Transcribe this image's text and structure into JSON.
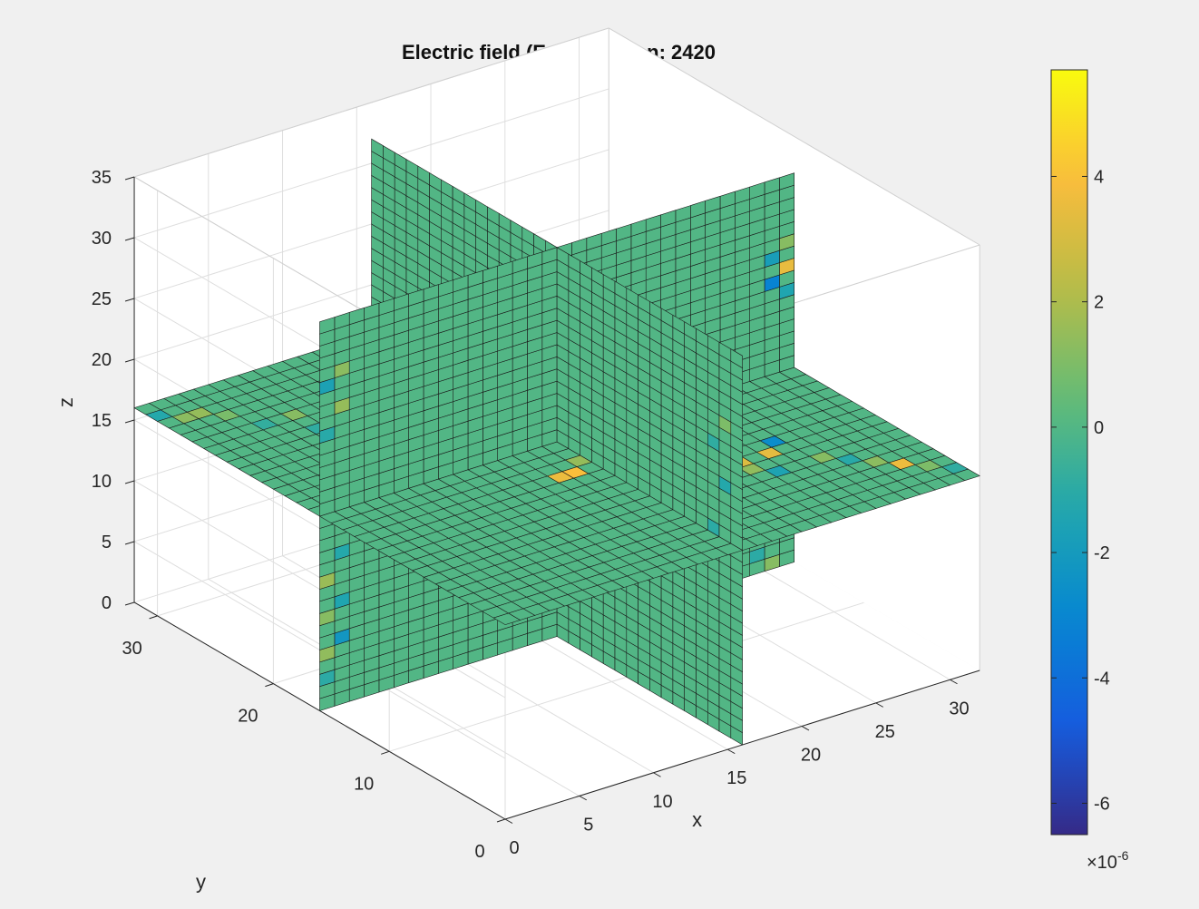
{
  "chart_data": {
    "type": "heatmap",
    "subtype": "3d-slice",
    "title": "Electric field (Ez) - Iteration: 2420",
    "xlabel": "x",
    "ylabel": "y",
    "zlabel": "z",
    "xlim": [
      0,
      32
    ],
    "ylim": [
      0,
      32
    ],
    "zlim": [
      0,
      35
    ],
    "x_ticks": [
      "0",
      "5",
      "10",
      "15",
      "20",
      "25",
      "30"
    ],
    "y_ticks": [
      "0",
      "10",
      "20",
      "30"
    ],
    "z_ticks": [
      "0",
      "5",
      "10",
      "15",
      "20",
      "25",
      "30",
      "35"
    ],
    "slices": {
      "x": 16,
      "y": 16,
      "z": 16
    },
    "grid_cells": 32,
    "colormap": "parula",
    "colorbar": {
      "ticks": [
        "-6",
        "-4",
        "-2",
        "0",
        "2",
        "4"
      ],
      "exponent_label": "×10",
      "exponent_power": "-6",
      "range": [
        -6.5,
        5.7
      ]
    },
    "background_value": 0,
    "nonzero_cells": [
      {
        "plane": "z",
        "i": 0,
        "j": 30,
        "v": -1.2
      },
      {
        "plane": "z",
        "i": 1,
        "j": 29,
        "v": 1.3
      },
      {
        "plane": "z",
        "i": 2,
        "j": 29,
        "v": 1.5
      },
      {
        "plane": "z",
        "i": 3,
        "j": 28,
        "v": 0.9
      },
      {
        "plane": "z",
        "i": 4,
        "j": 26,
        "v": -0.8
      },
      {
        "plane": "z",
        "i": 6,
        "j": 24,
        "v": -0.9
      },
      {
        "plane": "z",
        "i": 6,
        "j": 26,
        "v": 1.2
      },
      {
        "plane": "z",
        "i": 7,
        "j": 23,
        "v": -2.0
      },
      {
        "plane": "z",
        "i": 8,
        "j": 22,
        "v": -1.0
      },
      {
        "plane": "z",
        "i": 9,
        "j": 21,
        "v": 1.1
      },
      {
        "plane": "z",
        "i": 11,
        "j": 19,
        "v": -1.4
      },
      {
        "plane": "z",
        "i": 14,
        "j": 17,
        "v": 1.0
      },
      {
        "plane": "z",
        "i": 16,
        "j": 15,
        "v": -1.0
      },
      {
        "plane": "z",
        "i": 18,
        "j": 12,
        "v": 1.2
      },
      {
        "plane": "z",
        "i": 20,
        "j": 10,
        "v": -1.6
      },
      {
        "plane": "z",
        "i": 21,
        "j": 9,
        "v": -1.0
      },
      {
        "plane": "z",
        "i": 22,
        "j": 8,
        "v": 3.2
      },
      {
        "plane": "z",
        "i": 22,
        "j": 7,
        "v": 1.4
      },
      {
        "plane": "z",
        "i": 23,
        "j": 6,
        "v": -1.5
      },
      {
        "plane": "z",
        "i": 24,
        "j": 8,
        "v": 3.4
      },
      {
        "plane": "z",
        "i": 25,
        "j": 9,
        "v": -2.7
      },
      {
        "plane": "z",
        "i": 26,
        "j": 6,
        "v": 1.2
      },
      {
        "plane": "z",
        "i": 27,
        "j": 5,
        "v": -1.1
      },
      {
        "plane": "z",
        "i": 28,
        "j": 4,
        "v": 1.3
      },
      {
        "plane": "z",
        "i": 29,
        "j": 3,
        "v": 3.6
      },
      {
        "plane": "z",
        "i": 30,
        "j": 2,
        "v": 1.0
      },
      {
        "plane": "z",
        "i": 31,
        "j": 1,
        "v": -0.9
      },
      {
        "plane": "z",
        "i": 14,
        "j": 12,
        "v": 4.0
      },
      {
        "plane": "z",
        "i": 13,
        "j": 12,
        "v": 3.6
      },
      {
        "plane": "z",
        "i": 15,
        "j": 13,
        "v": 1.5
      },
      {
        "plane": "z",
        "i": 17,
        "j": 14,
        "v": -2.5
      },
      {
        "plane": "z",
        "i": 18,
        "j": 15,
        "v": 4.2
      },
      {
        "plane": "z",
        "i": 24,
        "j": 18,
        "v": 3.4
      },
      {
        "plane": "z",
        "i": 26,
        "j": 19,
        "v": -1.2
      },
      {
        "plane": "z",
        "i": 29,
        "j": 17,
        "v": 1.4
      },
      {
        "plane": "y",
        "i": 0,
        "j": 2,
        "v": -1.0
      },
      {
        "plane": "y",
        "i": 0,
        "j": 4,
        "v": 1.4
      },
      {
        "plane": "y",
        "i": 1,
        "j": 5,
        "v": -2.2
      },
      {
        "plane": "y",
        "i": 0,
        "j": 7,
        "v": 1.2
      },
      {
        "plane": "y",
        "i": 1,
        "j": 8,
        "v": -1.4
      },
      {
        "plane": "y",
        "i": 0,
        "j": 10,
        "v": 1.6
      },
      {
        "plane": "y",
        "i": 1,
        "j": 12,
        "v": -1.2
      },
      {
        "plane": "y",
        "i": 0,
        "j": 22,
        "v": -1.1
      },
      {
        "plane": "y",
        "i": 1,
        "j": 24,
        "v": 1.5
      },
      {
        "plane": "y",
        "i": 0,
        "j": 26,
        "v": -1.6
      },
      {
        "plane": "y",
        "i": 1,
        "j": 27,
        "v": 1.3
      },
      {
        "plane": "y",
        "i": 31,
        "j": 4,
        "v": -1.2
      },
      {
        "plane": "y",
        "i": 30,
        "j": 6,
        "v": 1.8
      },
      {
        "plane": "y",
        "i": 31,
        "j": 8,
        "v": -2.4
      },
      {
        "plane": "y",
        "i": 30,
        "j": 10,
        "v": 3.8
      },
      {
        "plane": "y",
        "i": 31,
        "j": 11,
        "v": -1.3
      },
      {
        "plane": "y",
        "i": 30,
        "j": 0,
        "v": 1.2
      },
      {
        "plane": "y",
        "i": 29,
        "j": 1,
        "v": -1.0
      },
      {
        "plane": "y",
        "i": 31,
        "j": 22,
        "v": -1.4
      },
      {
        "plane": "y",
        "i": 30,
        "j": 23,
        "v": -3.2
      },
      {
        "plane": "y",
        "i": 31,
        "j": 24,
        "v": 3.5
      },
      {
        "plane": "y",
        "i": 30,
        "j": 25,
        "v": -1.8
      },
      {
        "plane": "y",
        "i": 31,
        "j": 26,
        "v": 1.2
      },
      {
        "plane": "x",
        "i": 2,
        "j": 16,
        "v": -1.0
      },
      {
        "plane": "x",
        "i": 1,
        "j": 20,
        "v": -1.2
      },
      {
        "plane": "x",
        "i": 2,
        "j": 23,
        "v": -0.9
      },
      {
        "plane": "x",
        "i": 1,
        "j": 25,
        "v": 1.0
      }
    ]
  }
}
